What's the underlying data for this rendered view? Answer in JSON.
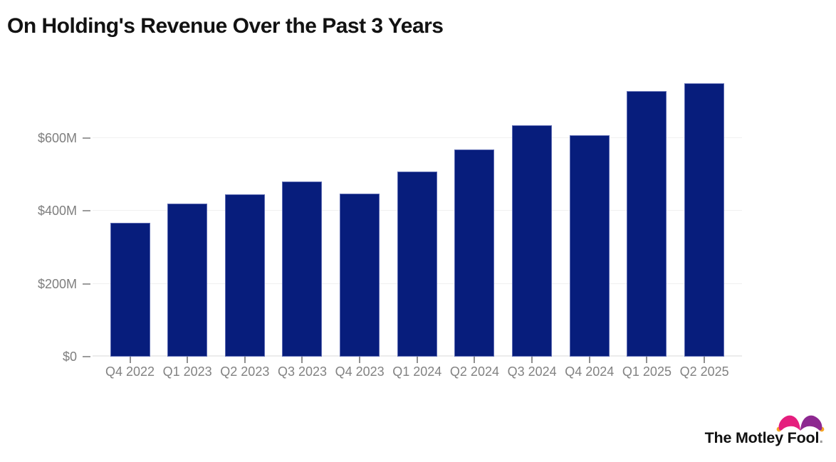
{
  "title": "On Holding's Revenue Over the Past 3 Years",
  "chart_data": {
    "type": "bar",
    "title": "On Holding's Revenue Over the Past 3 Years",
    "categories": [
      "Q4 2022",
      "Q1 2023",
      "Q2 2023",
      "Q3 2023",
      "Q4 2023",
      "Q1 2024",
      "Q2 2024",
      "Q3 2024",
      "Q4 2024",
      "Q1 2025",
      "Q2 2025"
    ],
    "values": [
      366,
      420,
      444,
      480,
      447,
      508,
      567,
      635,
      606,
      727,
      749
    ],
    "unit": "$M",
    "xlabel": "",
    "ylabel": "",
    "ylim": [
      0,
      800
    ],
    "ytick_values": [
      0,
      200,
      400,
      600
    ],
    "ytick_labels": [
      "$0",
      "$200M",
      "$400M",
      "$600M"
    ],
    "grid": true,
    "legend": "none",
    "bar_color": "#071d7c"
  },
  "colors": {
    "background": "#ffffff",
    "bar": "#071d7c",
    "bar_edge": "#8b94cf",
    "title_text": "#121212",
    "axis_label": "#7e7e7e",
    "tick": "#9b9b9b",
    "gridline": "#f0f0f0",
    "logo_text": "#111111",
    "hat_pink": "#e51e7e",
    "hat_purple": "#8d2890",
    "hat_gold": "#f5a623"
  },
  "branding": {
    "logo_text": "The Motley Fool",
    "logo_period": "."
  }
}
